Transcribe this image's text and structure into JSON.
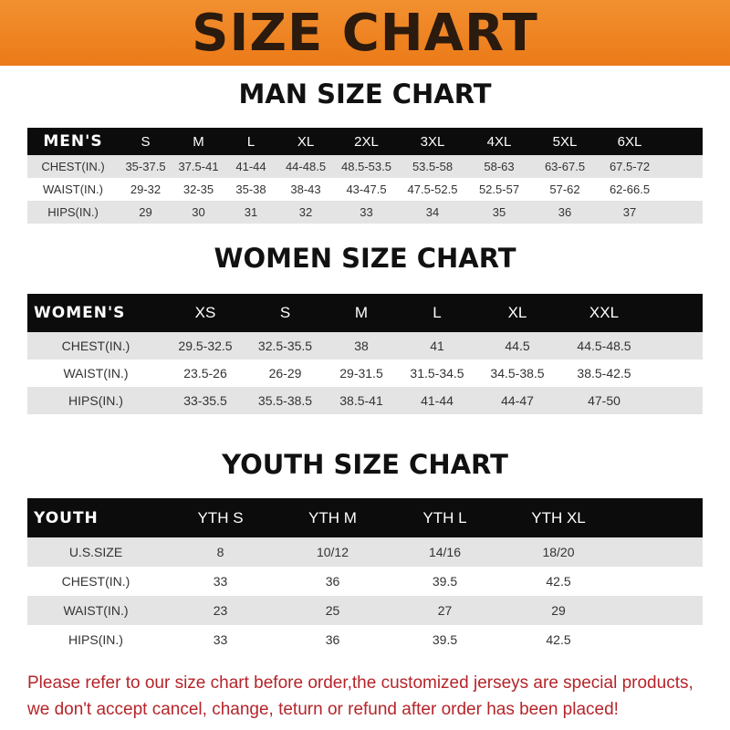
{
  "title": "SIZE CHART",
  "brand_color": "#ee8222",
  "men": {
    "title": "MAN SIZE CHART",
    "header": [
      "MEN'S",
      "S",
      "M",
      "L",
      "XL",
      "2XL",
      "3XL",
      "4XL",
      "5XL",
      "6XL"
    ],
    "rows": [
      [
        "CHEST(IN.)",
        "35-37.5",
        "37.5-41",
        "41-44",
        "44-48.5",
        "48.5-53.5",
        "53.5-58",
        "58-63",
        "63-67.5",
        "67.5-72"
      ],
      [
        "WAIST(IN.)",
        "29-32",
        "32-35",
        "35-38",
        "38-43",
        "43-47.5",
        "47.5-52.5",
        "52.5-57",
        "57-62",
        "62-66.5"
      ],
      [
        "HIPS(IN.)",
        "29",
        "30",
        "31",
        "32",
        "33",
        "34",
        "35",
        "36",
        "37"
      ]
    ]
  },
  "women": {
    "title": "WOMEN SIZE CHART",
    "header": [
      "WOMEN'S",
      "XS",
      "S",
      "M",
      "L",
      "XL",
      "XXL"
    ],
    "rows": [
      [
        "CHEST(IN.)",
        "29.5-32.5",
        "32.5-35.5",
        "38",
        "41",
        "44.5",
        "44.5-48.5"
      ],
      [
        "WAIST(IN.)",
        "23.5-26",
        "26-29",
        "29-31.5",
        "31.5-34.5",
        "34.5-38.5",
        "38.5-42.5"
      ],
      [
        "HIPS(IN.)",
        "33-35.5",
        "35.5-38.5",
        "38.5-41",
        "41-44",
        "44-47",
        "47-50"
      ]
    ]
  },
  "youth": {
    "title": "YOUTH SIZE CHART",
    "header": [
      "YOUTH",
      "YTH S",
      "YTH M",
      "YTH L",
      "YTH XL"
    ],
    "rows": [
      [
        "U.S.SIZE",
        "8",
        "10/12",
        "14/16",
        "18/20"
      ],
      [
        "CHEST(IN.)",
        "33",
        "36",
        "39.5",
        "42.5"
      ],
      [
        "WAIST(IN.)",
        "23",
        "25",
        "27",
        "29"
      ],
      [
        "HIPS(IN.)",
        "33",
        "36",
        "39.5",
        "42.5"
      ]
    ]
  },
  "notice": [
    "Please refer to our size chart before order,the customized jerseys are special products,",
    "we don't accept cancel, change, teturn or refund after order has been placed!"
  ]
}
